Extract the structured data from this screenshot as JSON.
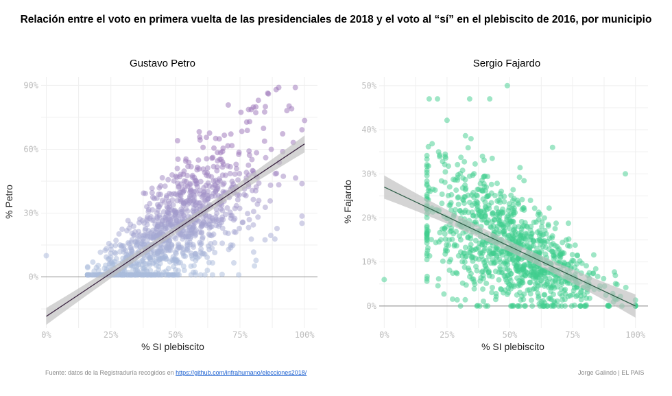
{
  "title": "Relación entre el voto en primera vuelta de las presidenciales de 2018 y el voto al “sí” en el plebiscito de 2016, por municipio",
  "footer": {
    "source_text": "Fuente: datos de la Registraduría recogidos en ",
    "source_link": "https://github.com/infrahumano/elecciones2018/",
    "credit": "Jorge Galindo | EL PAIS"
  },
  "colors": {
    "petro_low": "#a9bcdc",
    "petro_high": "#9a72b8",
    "fajardo": "#3fce8e",
    "trend_petro": "#3a2340",
    "trend_fajardo": "#2f5e48",
    "ribbon": "#bdbdbd",
    "grid": "#efefef",
    "zero_line": "#888888"
  },
  "chart_data": [
    {
      "type": "scatter",
      "title": "Gustavo Petro",
      "xlabel": "% SI plebiscito",
      "ylabel": "% Petro",
      "xlim": [
        -0.02,
        1.05
      ],
      "ylim": [
        -0.24,
        0.94
      ],
      "xticks": [
        0,
        0.25,
        0.5,
        0.75,
        1.0
      ],
      "xtick_labels": [
        "0%",
        "25%",
        "50%",
        "75%",
        "100%"
      ],
      "yticks": [
        0,
        0.3,
        0.6,
        0.9
      ],
      "ytick_labels": [
        "0%",
        "30%",
        "60%",
        "90%"
      ],
      "trend": {
        "x0": 0,
        "y0": -0.185,
        "x1": 1.0,
        "y1": 0.625
      },
      "ribbon_halfwidth": 0.018,
      "outliers": [
        [
          0.0,
          0.1
        ],
        [
          0.89,
          0.88
        ],
        [
          0.9,
          0.89
        ],
        [
          0.86,
          0.86
        ],
        [
          1.0,
          0.735
        ],
        [
          0.95,
          0.79
        ]
      ],
      "generator": {
        "n": 1100,
        "seed": 7,
        "x_mean": 0.5,
        "x_sd": 0.17,
        "x_min": 0.16,
        "x_max": 0.99,
        "slope": 0.81,
        "intercept": -0.185,
        "noise_base": 0.06,
        "noise_growth": 0.18,
        "y_min": 0.01,
        "y_max": 0.89
      }
    },
    {
      "type": "scatter",
      "title": "Sergio Fajardo",
      "xlabel": "% SI plebiscito",
      "ylabel": "% Fajardo",
      "xlim": [
        -0.02,
        1.05
      ],
      "ylim": [
        -0.05,
        0.52
      ],
      "xticks": [
        0,
        0.25,
        0.5,
        0.75,
        1.0
      ],
      "xtick_labels": [
        "0%",
        "25%",
        "50%",
        "75%",
        "100%"
      ],
      "yticks": [
        0,
        0.1,
        0.2,
        0.3,
        0.4,
        0.5
      ],
      "ytick_labels": [
        "0%",
        "10%",
        "20%",
        "30%",
        "40%",
        "50%"
      ],
      "trend": {
        "x0": 0,
        "y0": 0.27,
        "x1": 1.0,
        "y1": 0.0
      },
      "ribbon_halfwidth": 0.012,
      "outliers": [
        [
          0.0,
          0.06
        ],
        [
          0.49,
          0.5
        ],
        [
          0.96,
          0.3
        ],
        [
          0.34,
          0.47
        ],
        [
          0.42,
          0.47
        ],
        [
          0.67,
          0.36
        ]
      ],
      "generator": {
        "n": 1100,
        "seed": 11,
        "x_mean": 0.5,
        "x_sd": 0.18,
        "x_min": 0.17,
        "x_max": 1.0,
        "slope": -0.27,
        "intercept": 0.27,
        "noise_base": 0.02,
        "noise_growth": 0.1,
        "y_min": 0.0,
        "y_max": 0.47
      }
    }
  ]
}
